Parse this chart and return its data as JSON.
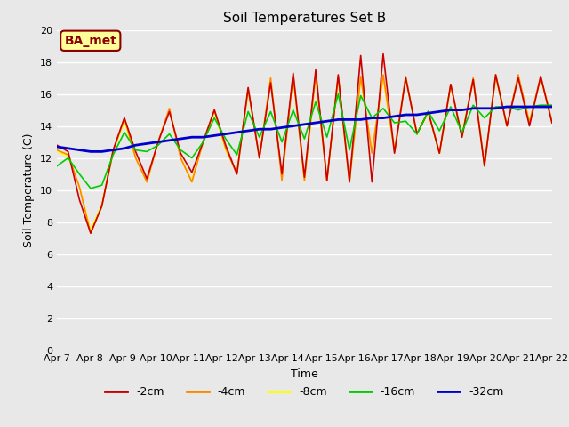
{
  "title": "Soil Temperatures Set B",
  "xlabel": "Time",
  "ylabel": "Soil Temperature (C)",
  "bg_color": "#e8e8e8",
  "ylim": [
    0,
    20
  ],
  "yticks": [
    0,
    2,
    4,
    6,
    8,
    10,
    12,
    14,
    16,
    18,
    20
  ],
  "xtick_labels": [
    "Apr 7",
    "Apr 8",
    "Apr 9",
    "Apr 10",
    "Apr 11",
    "Apr 12",
    "Apr 13",
    "Apr 14",
    "Apr 15",
    "Apr 16",
    "Apr 17",
    "Apr 18",
    "Apr 19",
    "Apr 20",
    "Apr 21",
    "Apr 22"
  ],
  "legend_labels": [
    "-2cm",
    "-4cm",
    "-8cm",
    "-16cm",
    "-32cm"
  ],
  "legend_colors": [
    "#cc0000",
    "#ff8800",
    "#ffff00",
    "#00cc00",
    "#0000cc"
  ],
  "annotation_text": "BA_met",
  "annotation_bg": "#ffff99",
  "annotation_border": "#8b0000",
  "title_fontsize": 11,
  "label_fontsize": 9,
  "tick_fontsize": 8,
  "t_2cm": [
    12.8,
    12.4,
    9.4,
    7.3,
    9.0,
    12.5,
    14.5,
    12.4,
    10.7,
    13.0,
    14.9,
    12.3,
    11.1,
    13.0,
    15.0,
    12.8,
    11.0,
    16.4,
    12.0,
    16.7,
    11.0,
    17.3,
    10.8,
    17.5,
    10.6,
    17.2,
    10.5,
    18.4,
    10.5,
    18.5,
    12.3,
    17.0,
    13.5,
    14.9,
    12.3,
    16.6,
    13.3,
    16.9,
    11.5,
    17.2,
    14.0,
    17.0,
    14.0,
    17.1,
    14.2
  ],
  "t_4cm": [
    12.5,
    12.2,
    10.2,
    7.3,
    9.0,
    12.4,
    14.5,
    12.0,
    10.5,
    13.0,
    15.1,
    12.0,
    10.5,
    13.0,
    15.0,
    12.6,
    11.0,
    16.3,
    12.0,
    17.0,
    10.6,
    17.2,
    10.6,
    17.2,
    10.6,
    17.1,
    10.5,
    17.1,
    12.3,
    17.2,
    12.4,
    17.1,
    13.5,
    14.9,
    12.3,
    16.6,
    13.3,
    17.0,
    11.5,
    17.2,
    14.0,
    17.2,
    14.2,
    17.1,
    14.3
  ],
  "t_8cm": [
    12.4,
    12.1,
    10.2,
    7.5,
    9.1,
    12.4,
    14.3,
    12.0,
    10.5,
    13.0,
    15.0,
    12.0,
    10.6,
    13.0,
    14.9,
    12.5,
    11.1,
    16.2,
    12.1,
    16.9,
    10.8,
    17.1,
    10.6,
    17.1,
    10.6,
    17.0,
    10.5,
    17.0,
    12.4,
    17.0,
    12.5,
    17.0,
    13.5,
    14.8,
    12.3,
    16.5,
    13.4,
    16.9,
    11.6,
    17.1,
    14.0,
    17.1,
    14.3,
    17.0,
    14.3
  ],
  "t_16cm": [
    11.5,
    12.0,
    11.0,
    10.1,
    10.3,
    12.2,
    13.6,
    12.5,
    12.4,
    12.8,
    13.5,
    12.5,
    12.0,
    13.0,
    14.5,
    13.2,
    12.2,
    14.9,
    13.3,
    14.9,
    13.0,
    15.0,
    13.2,
    15.5,
    13.3,
    16.0,
    12.5,
    15.9,
    14.5,
    15.1,
    14.2,
    14.3,
    13.5,
    14.9,
    13.7,
    15.2,
    13.6,
    15.3,
    14.5,
    15.2,
    15.2,
    15.0,
    15.2,
    15.3,
    15.3
  ],
  "t_32cm": [
    12.7,
    12.6,
    12.5,
    12.4,
    12.4,
    12.5,
    12.6,
    12.8,
    12.9,
    13.0,
    13.1,
    13.2,
    13.3,
    13.3,
    13.4,
    13.5,
    13.6,
    13.7,
    13.8,
    13.8,
    13.9,
    14.0,
    14.1,
    14.2,
    14.3,
    14.4,
    14.4,
    14.4,
    14.5,
    14.5,
    14.6,
    14.7,
    14.7,
    14.8,
    14.9,
    15.0,
    15.0,
    15.1,
    15.1,
    15.1,
    15.2,
    15.2,
    15.2,
    15.2,
    15.2
  ]
}
